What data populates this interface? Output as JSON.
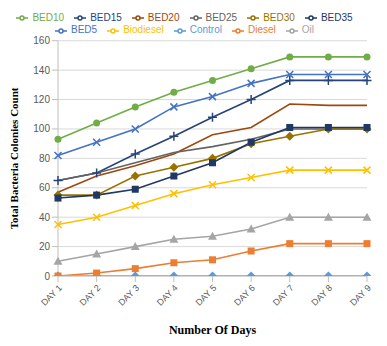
{
  "chart_data": {
    "type": "line",
    "x_label": "Number Of Days",
    "y_label": "Total Bacteria Colonies Count",
    "categories": [
      "DAY 1",
      "DAY 2",
      "DAY 3",
      "DAY 4",
      "DAY 5",
      "DAY 6",
      "DAY 7",
      "DAY 8",
      "DAY 9"
    ],
    "ylim": [
      0,
      160
    ],
    "yticks": [
      0,
      20,
      40,
      60,
      80,
      100,
      120,
      140,
      160
    ],
    "grid": true,
    "legend": "top",
    "series": [
      {
        "name": "Control",
        "color": "#5b9bd5",
        "marker": "diamond",
        "values": [
          0,
          0,
          0,
          0,
          0,
          0,
          0,
          0,
          0
        ]
      },
      {
        "name": "Diesel",
        "color": "#ed7d31",
        "marker": "square",
        "values": [
          0,
          2,
          5,
          9,
          11,
          17,
          22,
          22,
          22
        ]
      },
      {
        "name": "Oil",
        "color": "#a5a5a5",
        "marker": "triangle",
        "values": [
          10,
          15,
          20,
          25,
          27,
          32,
          40,
          40,
          40
        ]
      },
      {
        "name": "Biodiesel",
        "color": "#ffc000",
        "marker": "x",
        "values": [
          35,
          40,
          48,
          56,
          62,
          67,
          72,
          72,
          72
        ]
      },
      {
        "name": "BED5",
        "color": "#4472c4",
        "marker": "x",
        "values": [
          82,
          91,
          100,
          115,
          122,
          131,
          137,
          137,
          137
        ]
      },
      {
        "name": "BED10",
        "color": "#70ad47",
        "marker": "circle",
        "values": [
          93,
          104,
          115,
          125,
          133,
          141,
          149,
          149,
          149
        ]
      },
      {
        "name": "BED15",
        "color": "#264478",
        "marker": "plus",
        "values": [
          65,
          70,
          83,
          95,
          108,
          120,
          133,
          133,
          133
        ]
      },
      {
        "name": "BED20",
        "color": "#9e480e",
        "marker": "none",
        "values": [
          57,
          68,
          75,
          83,
          96,
          101,
          117,
          116,
          116
        ]
      },
      {
        "name": "BED25",
        "color": "#636363",
        "marker": "none",
        "values": [
          65,
          70,
          77,
          84,
          88,
          93,
          100,
          100,
          100
        ]
      },
      {
        "name": "BED30",
        "color": "#997300",
        "marker": "diamond",
        "values": [
          55,
          55,
          68,
          74,
          80,
          90,
          95,
          100,
          100
        ]
      },
      {
        "name": "BED35",
        "color": "#1f3864",
        "marker": "square",
        "values": [
          53,
          55,
          59,
          68,
          77,
          91,
          101,
          101,
          101
        ]
      }
    ]
  }
}
